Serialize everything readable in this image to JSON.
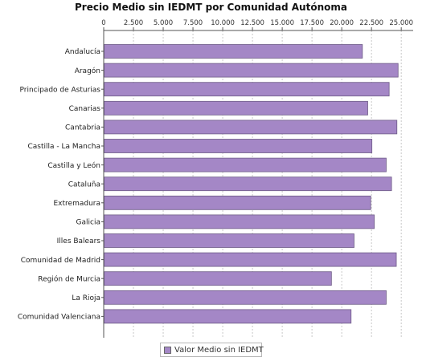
{
  "chart_data": {
    "type": "bar",
    "orientation": "horizontal",
    "title": "Precio Medio sin IEDMT por Comunidad Autónoma",
    "categories": [
      "Andalucía",
      "Aragón",
      "Principado de Asturias",
      "Canarias",
      "Cantabria",
      "Castilla - La Mancha",
      "Castilla y León",
      "Cataluña",
      "Extremadura",
      "Galicia",
      "Illes Balears",
      "Comunidad de Madrid",
      "Región de Murcia",
      "La Rioja",
      "Comunidad Valenciana"
    ],
    "series": [
      {
        "name": "Valor Medio sin IEDMT",
        "color": "#a487c6",
        "values": [
          21700,
          24700,
          23950,
          22150,
          24600,
          22500,
          23700,
          24150,
          22400,
          22700,
          21000,
          24550,
          19100,
          23700,
          20750
        ]
      }
    ],
    "x_ticks": [
      "0",
      "2.500",
      "5.000",
      "7.500",
      "10.000",
      "12.500",
      "15.000",
      "17.500",
      "20.000",
      "22.500",
      "25.000"
    ],
    "x_tick_values": [
      0,
      2500,
      5000,
      7500,
      10000,
      12500,
      15000,
      17500,
      20000,
      22500,
      25000
    ],
    "xlim": [
      0,
      26000
    ],
    "x_axis_position": "top",
    "grid": true,
    "legend": "bottom-center",
    "colors": {
      "bar_fill": "#a487c6",
      "bar_stroke": "#6d5a86",
      "grid": "#c8c8c8",
      "axis": "#555555"
    }
  }
}
